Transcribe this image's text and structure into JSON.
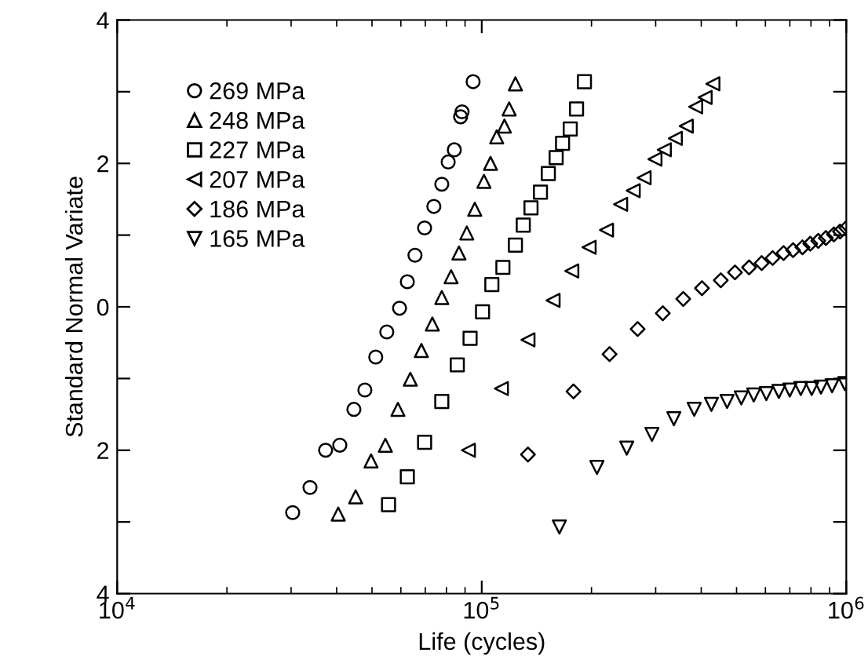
{
  "chart_data": {
    "type": "scatter",
    "xlabel": "Life (cycles)",
    "ylabel": "Standard Normal Variate",
    "log": "x",
    "xlim": [
      10000,
      1000000
    ],
    "xticks": [
      {
        "value": 10000,
        "label": "10$^{4}$"
      },
      {
        "value": 100000,
        "label": "10$^{5}$"
      },
      {
        "value": 1000000,
        "label": "10$^{6}$"
      }
    ],
    "ylim": [
      -4,
      4
    ],
    "yticks": [
      {
        "value": -4,
        "label": "4"
      },
      {
        "value": -3,
        "label": null
      },
      {
        "value": -2,
        "label": "2"
      },
      {
        "value": -1,
        "label": null
      },
      0,
      {
        "value": 1,
        "label": null
      },
      2,
      {
        "value": 3,
        "label": null
      },
      4
    ],
    "grid": false,
    "legend": "top left",
    "series": [
      {
        "name": "269 MPa",
        "color": "#000000",
        "marker": "circle",
        "x": [
          30300,
          33800,
          37300,
          40800,
          44600,
          47800,
          51200,
          54900,
          59500,
          62500,
          65600,
          69700,
          73900,
          77700,
          80900,
          84100,
          87500,
          88300,
          94700
        ],
        "values": [
          -2.87,
          -2.52,
          -2.0,
          -1.93,
          -1.43,
          -1.16,
          -0.7,
          -0.35,
          -0.02,
          0.35,
          0.72,
          1.1,
          1.4,
          1.71,
          2.02,
          2.19,
          2.65,
          2.72,
          3.14
        ]
      },
      {
        "name": "248 MPa",
        "color": "#000000",
        "marker": "triangle",
        "x": [
          40400,
          45100,
          49700,
          54400,
          58900,
          63700,
          68300,
          73200,
          77700,
          82400,
          86600,
          91000,
          95700,
          101400,
          105700,
          109900,
          115400,
          118900,
          123700
        ],
        "values": [
          -2.89,
          -2.65,
          -2.15,
          -1.93,
          -1.43,
          -1.01,
          -0.61,
          -0.24,
          0.13,
          0.42,
          0.75,
          1.03,
          1.36,
          1.75,
          2.0,
          2.37,
          2.52,
          2.76,
          3.11
        ]
      },
      {
        "name": "227 MPa",
        "color": "#000000",
        "marker": "square",
        "x": [
          55500,
          62500,
          69700,
          77700,
          85700,
          92900,
          100500,
          106600,
          114300,
          123700,
          130000,
          136500,
          144900,
          152300,
          160000,
          166600,
          174900,
          182000,
          191300
        ],
        "values": [
          -2.76,
          -2.37,
          -1.89,
          -1.32,
          -0.81,
          -0.44,
          -0.07,
          0.31,
          0.55,
          0.86,
          1.14,
          1.38,
          1.6,
          1.86,
          2.08,
          2.28,
          2.48,
          2.76,
          3.14
        ]
      },
      {
        "name": "207 MPa",
        "color": "#000000",
        "marker": "triangle_left",
        "x": [
          91900,
          113200,
          133900,
          156900,
          176600,
          197000,
          219900,
          240400,
          260300,
          278800,
          298600,
          316800,
          339600,
          363900,
          386200,
          410000,
          430600
        ],
        "values": [
          -2.0,
          -1.14,
          -0.46,
          0.09,
          0.5,
          0.83,
          1.07,
          1.43,
          1.62,
          1.8,
          2.06,
          2.19,
          2.35,
          2.52,
          2.79,
          2.92,
          3.11
        ]
      },
      {
        "name": "186 MPa",
        "color": "#000000",
        "marker": "diamond",
        "x": [
          133900,
          178500,
          224200,
          267700,
          313800,
          357100,
          401900,
          452600,
          495100,
          541300,
          585900,
          627900,
          672900,
          714500,
          758300,
          796400,
          837500,
          879000,
          924600,
          961200,
          1000000
        ],
        "values": [
          -2.06,
          -1.18,
          -0.66,
          -0.31,
          -0.09,
          0.11,
          0.26,
          0.37,
          0.48,
          0.55,
          0.61,
          0.68,
          0.75,
          0.79,
          0.83,
          0.88,
          0.92,
          0.96,
          1.01,
          1.05,
          1.1
        ]
      },
      {
        "name": "165 MPa",
        "color": "#000000",
        "marker": "triangle_down",
        "x": [
          163300,
          207000,
          249900,
          293000,
          336500,
          382700,
          426600,
          471000,
          515200,
          557200,
          603500,
          653100,
          699800,
          750100,
          803800,
          852200,
          914000,
          990900
        ],
        "values": [
          -3.07,
          -2.24,
          -1.97,
          -1.78,
          -1.56,
          -1.43,
          -1.36,
          -1.32,
          -1.27,
          -1.23,
          -1.21,
          -1.18,
          -1.16,
          -1.14,
          -1.14,
          -1.12,
          -1.1,
          -1.07
        ]
      }
    ]
  }
}
